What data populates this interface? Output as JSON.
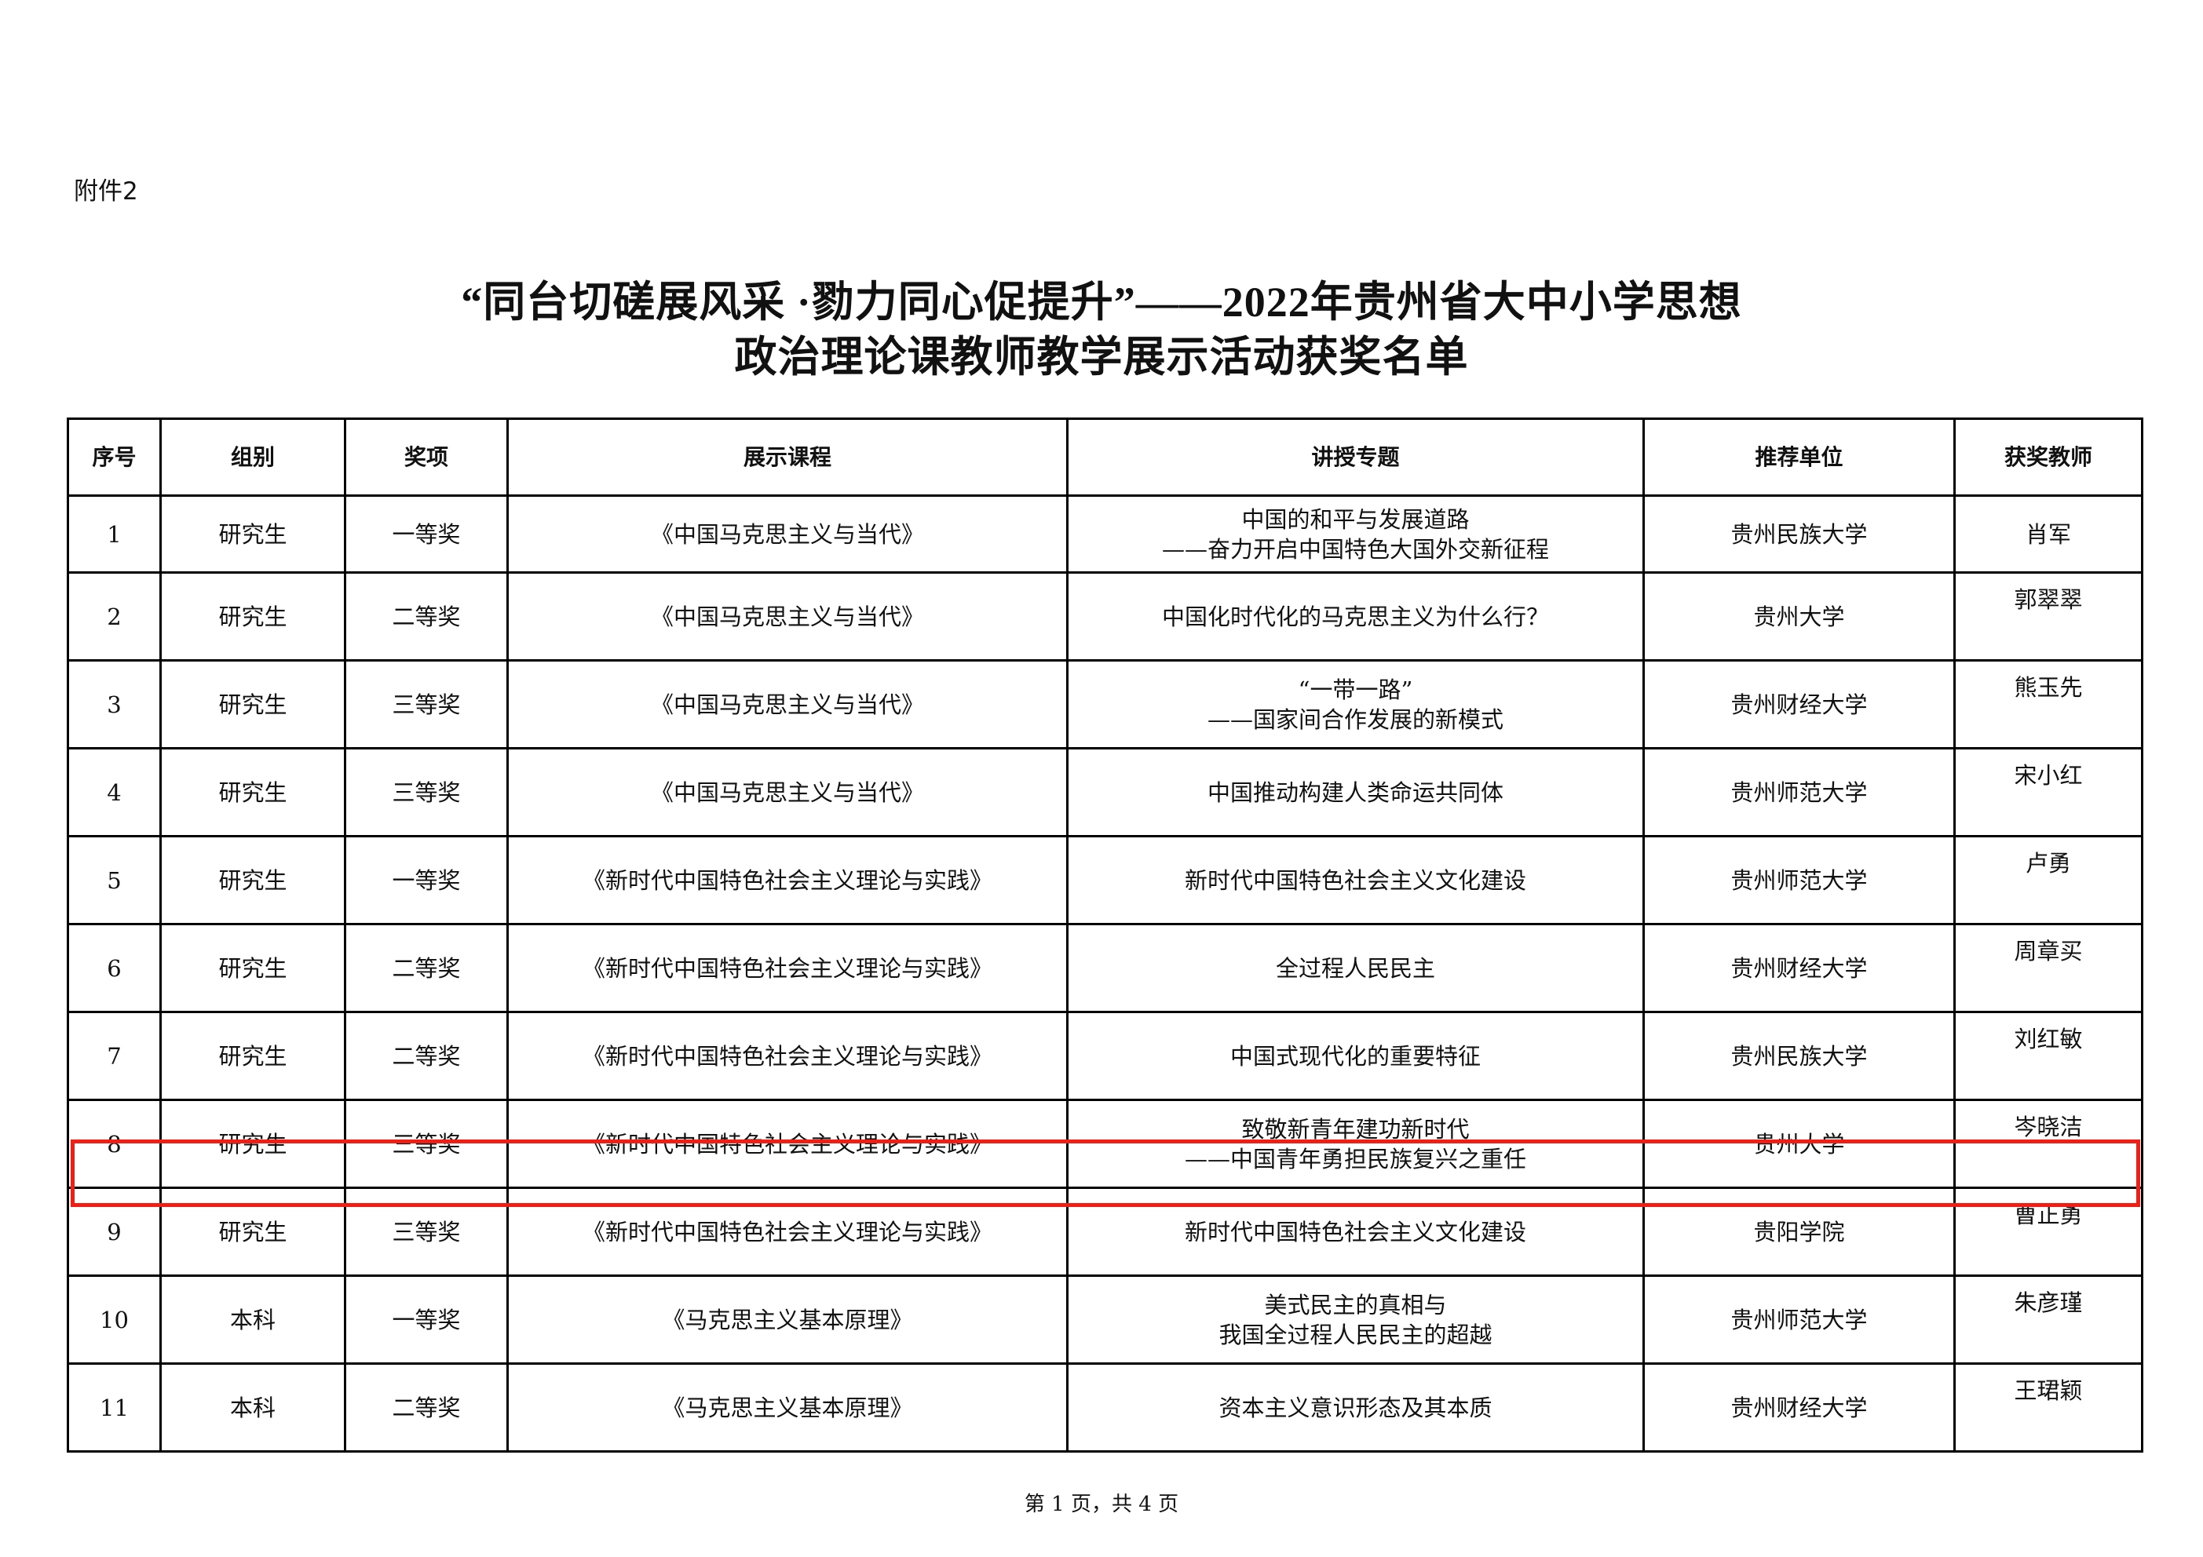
{
  "attachment_label": "附件2",
  "title": {
    "line1": "“同台切磋展风采 ·勠力同心促提升”——2022年贵州省大中小学思想",
    "line2": "政治理论课教师教学展示活动获奖名单"
  },
  "table": {
    "headers": [
      "序号",
      "组别",
      "奖项",
      "展示课程",
      "讲授专题",
      "推荐单位",
      "获奖教师"
    ],
    "rows": [
      {
        "no": "1",
        "group": "研究生",
        "award": "一等奖",
        "course": "《中国马克思主义与当代》",
        "topic": [
          "中国的和平与发展道路",
          "——奋力开启中国特色大国外交新征程"
        ],
        "unit": "贵州民族大学",
        "teacher": "肖军"
      },
      {
        "no": "2",
        "group": "研究生",
        "award": "二等奖",
        "course": "《中国马克思主义与当代》",
        "topic": [
          "中国化时代化的马克思主义为什么行？"
        ],
        "unit": "贵州大学",
        "teacher": "郭翠翠"
      },
      {
        "no": "3",
        "group": "研究生",
        "award": "三等奖",
        "course": "《中国马克思主义与当代》",
        "topic": [
          "“一带一路”",
          "——国家间合作发展的新模式"
        ],
        "unit": "贵州财经大学",
        "teacher": "熊玉先"
      },
      {
        "no": "4",
        "group": "研究生",
        "award": "三等奖",
        "course": "《中国马克思主义与当代》",
        "topic": [
          "中国推动构建人类命运共同体"
        ],
        "unit": "贵州师范大学",
        "teacher": "宋小红"
      },
      {
        "no": "5",
        "group": "研究生",
        "award": "一等奖",
        "course": "《新时代中国特色社会主义理论与实践》",
        "topic": [
          "新时代中国特色社会主义文化建设"
        ],
        "unit": "贵州师范大学",
        "teacher": "卢勇"
      },
      {
        "no": "6",
        "group": "研究生",
        "award": "二等奖",
        "course": "《新时代中国特色社会主义理论与实践》",
        "topic": [
          "全过程人民民主"
        ],
        "unit": "贵州财经大学",
        "teacher": "周章买"
      },
      {
        "no": "7",
        "group": "研究生",
        "award": "二等奖",
        "course": "《新时代中国特色社会主义理论与实践》",
        "topic": [
          "中国式现代化的重要特征"
        ],
        "unit": "贵州民族大学",
        "teacher": "刘红敏"
      },
      {
        "no": "8",
        "group": "研究生",
        "award": "三等奖",
        "course": "《新时代中国特色社会主义理论与实践》",
        "topic": [
          "致敬新青年建功新时代",
          "——中国青年勇担民族复兴之重任"
        ],
        "unit": "贵州大学",
        "teacher": "岑晓洁"
      },
      {
        "no": "9",
        "group": "研究生",
        "award": "三等奖",
        "course": "《新时代中国特色社会主义理论与实践》",
        "topic": [
          "新时代中国特色社会主义文化建设"
        ],
        "unit": "贵阳学院",
        "teacher": "曹正勇"
      },
      {
        "no": "10",
        "group": "本科",
        "award": "一等奖",
        "course": "《马克思主义基本原理》",
        "topic": [
          "美式民主的真相与",
          "我国全过程人民民主的超越"
        ],
        "unit": "贵州师范大学",
        "teacher": "朱彦瑾"
      },
      {
        "no": "11",
        "group": "本科",
        "award": "二等奖",
        "course": "《马克思主义基本原理》",
        "topic": [
          "资本主义意识形态及其本质"
        ],
        "unit": "贵州财经大学",
        "teacher": "王珺颖"
      }
    ],
    "highlighted_row": "9",
    "highlight_color": "#f01e14"
  },
  "footer": "第 1 页，共 4 页"
}
